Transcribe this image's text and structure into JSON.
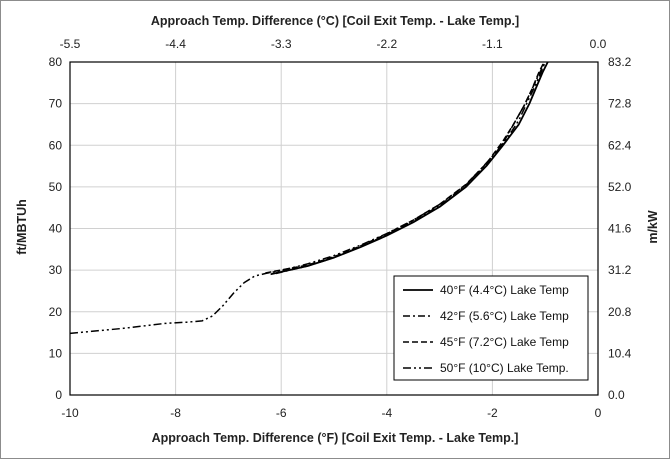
{
  "chart_data": {
    "type": "line",
    "xlabel_bottom": "Approach Temp. Difference (°F) [Coil Exit Temp. - Lake Temp.]",
    "xlabel_top": "Approach Temp. Difference (°C) [Coil Exit Temp. - Lake Temp.]",
    "ylabel_left": "ft/MBTUh",
    "ylabel_right": "m/kW",
    "xlim": [
      -10,
      0
    ],
    "ylim": [
      0,
      80
    ],
    "x_ticks_bottom": [
      "-10",
      "-8",
      "-6",
      "-4",
      "-2",
      "0"
    ],
    "x_ticks_top": [
      "-5.5",
      "-4.4",
      "-3.3",
      "-2.2",
      "-1.1",
      "0.0"
    ],
    "y_ticks_left": [
      "0",
      "10",
      "20",
      "30",
      "40",
      "50",
      "60",
      "70",
      "80"
    ],
    "y_ticks_right": [
      "0.0",
      "10.4",
      "20.8",
      "31.2",
      "41.6",
      "52.0",
      "62.4",
      "72.8",
      "83.2"
    ],
    "grid": true,
    "legend_position": "bottom-right",
    "series": [
      {
        "name": "40°F (4.4°C) Lake Temp",
        "dash": "solid",
        "x": [
          -6.2,
          -5.5,
          -5.0,
          -4.5,
          -4.0,
          -3.5,
          -3.0,
          -2.5,
          -2.1,
          -1.8,
          -1.5,
          -1.3,
          -1.15,
          -1.05,
          -0.95
        ],
        "y": [
          29.0,
          31.0,
          33.0,
          35.5,
          38.3,
          41.5,
          45.2,
          50.0,
          55.2,
          60.0,
          65.0,
          70.0,
          74.5,
          77.5,
          80.0
        ]
      },
      {
        "name": "42°F (5.6°C) Lake Temp",
        "dash": "dashdot",
        "x": [
          -6.1,
          -5.5,
          -5.0,
          -4.5,
          -4.0,
          -3.5,
          -3.0,
          -2.5,
          -2.1,
          -1.8,
          -1.6,
          -1.4,
          -1.25,
          -1.1,
          -1.0
        ],
        "y": [
          29.2,
          31.0,
          33.0,
          35.6,
          38.5,
          41.8,
          45.5,
          50.4,
          55.5,
          60.5,
          65.0,
          69.5,
          73.5,
          77.5,
          80.0
        ]
      },
      {
        "name": "45°F (7.2°C) Lake Temp",
        "dash": "dashed",
        "x": [
          -6.3,
          -5.5,
          -5.0,
          -4.5,
          -4.0,
          -3.5,
          -3.0,
          -2.5,
          -2.1,
          -1.8,
          -1.6,
          -1.4,
          -1.25,
          -1.12,
          -1.02
        ],
        "y": [
          29.3,
          31.2,
          33.2,
          35.8,
          38.7,
          42.0,
          45.8,
          50.6,
          55.8,
          61.0,
          65.0,
          69.5,
          73.5,
          77.5,
          80.0
        ]
      },
      {
        "name": "50°F (10°C) Lake Temp.",
        "dash": "dashdotdot",
        "x": [
          -10.0,
          -9.0,
          -8.2,
          -7.8,
          -7.5,
          -7.3,
          -7.1,
          -6.9,
          -6.7,
          -6.5,
          -6.3,
          -6.0,
          -5.5,
          -5.0,
          -4.5,
          -4.0,
          -3.5,
          -3.0,
          -2.5,
          -2.2,
          -1.9,
          -1.7,
          -1.5,
          -1.35,
          -1.2,
          -1.08,
          -1.0
        ],
        "y": [
          14.8,
          16.0,
          17.2,
          17.5,
          17.8,
          19.0,
          21.5,
          24.5,
          27.0,
          28.6,
          29.2,
          29.9,
          31.5,
          33.5,
          36.0,
          38.8,
          42.0,
          45.8,
          50.5,
          54.5,
          58.8,
          62.0,
          66.0,
          70.0,
          74.0,
          77.5,
          80.0
        ]
      }
    ]
  }
}
